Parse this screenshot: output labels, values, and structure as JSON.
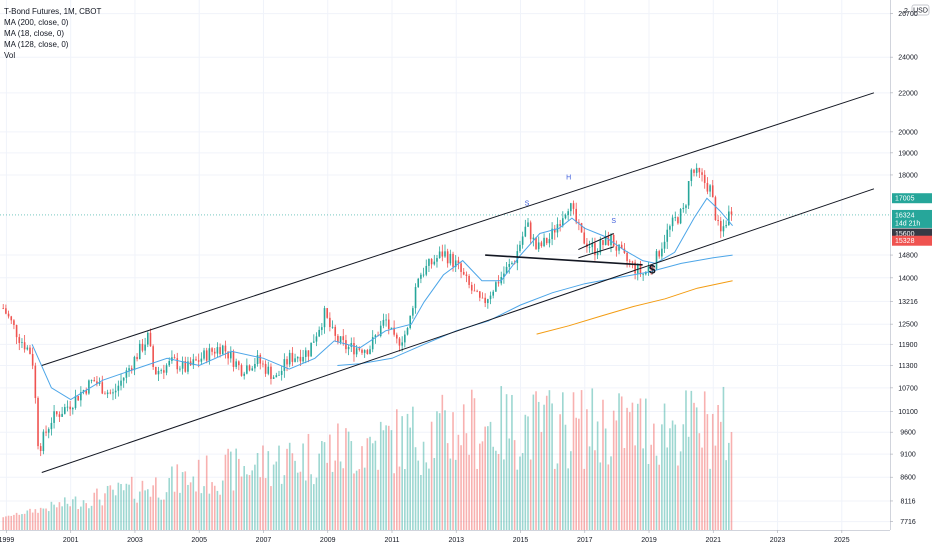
{
  "legend": {
    "title": "T-Bond Futures, 1M, CBOT",
    "studies": [
      "MA (200, close, 0)",
      "MA (18, close, 0)",
      "MA (128, close, 0)",
      "Vol"
    ]
  },
  "chart_data": {
    "type": "candlestick",
    "symbol": "T-Bond Futures",
    "interval": "1M",
    "exchange": "CBOT",
    "currency": "USD",
    "xlim": [
      1998.8,
      2026.5
    ],
    "ylim": [
      7560,
      27600
    ],
    "y_scale": "log",
    "x_ticks": [
      "1999",
      "2001",
      "2003",
      "2005",
      "2007",
      "2009",
      "2011",
      "2013",
      "2015",
      "2017",
      "2019",
      "2021",
      "2023",
      "2025"
    ],
    "y_ticks": [
      "26700",
      "24000",
      "22000",
      "20000",
      "19000",
      "18000",
      "17005",
      "16324",
      "14d 21h",
      "15600",
      "15328",
      "14800",
      "14000",
      "13216",
      "12500",
      "11900",
      "11300",
      "10700",
      "10100",
      "9600",
      "9100",
      "8600",
      "8116",
      "7716"
    ],
    "y_top_label": "2",
    "anchors": [
      [
        1998.9,
        13000
      ],
      [
        1999.4,
        12100
      ],
      [
        1999.8,
        11600
      ],
      [
        2000.0,
        9200
      ],
      [
        2000.4,
        9900
      ],
      [
        2001.0,
        10300
      ],
      [
        2001.7,
        10900
      ],
      [
        2002.3,
        10500
      ],
      [
        2002.8,
        11200
      ],
      [
        2003.4,
        12100
      ],
      [
        2003.6,
        11100
      ],
      [
        2004.2,
        11400
      ],
      [
        2004.6,
        11200
      ],
      [
        2005.2,
        11600
      ],
      [
        2005.7,
        11850
      ],
      [
        2006.3,
        11200
      ],
      [
        2006.8,
        11450
      ],
      [
        2007.4,
        10950
      ],
      [
        2007.8,
        11500
      ],
      [
        2008.4,
        11700
      ],
      [
        2008.9,
        12800
      ],
      [
        2009.2,
        12100
      ],
      [
        2009.6,
        11800
      ],
      [
        2010.3,
        11800
      ],
      [
        2010.8,
        12650
      ],
      [
        2011.1,
        11900
      ],
      [
        2011.5,
        12300
      ],
      [
        2011.8,
        14050
      ],
      [
        2012.6,
        14900
      ],
      [
        2013.0,
        14450
      ],
      [
        2013.4,
        13700
      ],
      [
        2013.8,
        13100
      ],
      [
        2014.3,
        13900
      ],
      [
        2014.8,
        14600
      ],
      [
        2015.2,
        15950
      ],
      [
        2015.5,
        15000
      ],
      [
        2015.9,
        15400
      ],
      [
        2016.5,
        16800
      ],
      [
        2016.9,
        15450
      ],
      [
        2017.3,
        15000
      ],
      [
        2017.8,
        15400
      ],
      [
        2018.2,
        14700
      ],
      [
        2018.8,
        14100
      ],
      [
        2019.2,
        14600
      ],
      [
        2019.5,
        15500
      ],
      [
        2019.8,
        16100
      ],
      [
        2020.1,
        16500
      ],
      [
        2020.3,
        18200
      ],
      [
        2020.6,
        17900
      ],
      [
        2020.9,
        17400
      ],
      [
        2021.2,
        15500
      ],
      [
        2021.6,
        16700
      ]
    ],
    "volume": {
      "first": 7800,
      "growth_until": 2013.5,
      "max": 10500
    },
    "moving_averages": [
      {
        "name": "MA (18, close, 0)",
        "color": "#4da6e8",
        "points": [
          [
            1999.8,
            11900
          ],
          [
            2000.4,
            10700
          ],
          [
            2001.0,
            10400
          ],
          [
            2002.0,
            10900
          ],
          [
            2003.0,
            11200
          ],
          [
            2004.0,
            11500
          ],
          [
            2005.0,
            11300
          ],
          [
            2006.0,
            11700
          ],
          [
            2007.0,
            11500
          ],
          [
            2007.8,
            11200
          ],
          [
            2008.6,
            11500
          ],
          [
            2009.2,
            12000
          ],
          [
            2010.0,
            11800
          ],
          [
            2010.8,
            12300
          ],
          [
            2011.6,
            12500
          ],
          [
            2012.0,
            13200
          ],
          [
            2012.6,
            14100
          ],
          [
            2013.2,
            14600
          ],
          [
            2013.8,
            13900
          ],
          [
            2014.4,
            13900
          ],
          [
            2015.0,
            14800
          ],
          [
            2015.6,
            15600
          ],
          [
            2016.2,
            15800
          ],
          [
            2016.6,
            16200
          ],
          [
            2017.0,
            15800
          ],
          [
            2017.6,
            15500
          ],
          [
            2018.2,
            15000
          ],
          [
            2018.8,
            14600
          ],
          [
            2019.2,
            14500
          ],
          [
            2019.8,
            14900
          ],
          [
            2020.4,
            16200
          ],
          [
            2020.8,
            17000
          ],
          [
            2021.2,
            16500
          ],
          [
            2021.6,
            15900
          ]
        ]
      },
      {
        "name": "MA (128, close, 0)",
        "color": "#4da6e8",
        "points": [
          [
            2009.3,
            11300
          ],
          [
            2010.0,
            11350
          ],
          [
            2011.0,
            11500
          ],
          [
            2012.0,
            11900
          ],
          [
            2013.0,
            12300
          ],
          [
            2014.0,
            12600
          ],
          [
            2015.0,
            13100
          ],
          [
            2016.0,
            13500
          ],
          [
            2017.0,
            13800
          ],
          [
            2018.0,
            14000
          ],
          [
            2019.0,
            14200
          ],
          [
            2020.0,
            14500
          ],
          [
            2021.0,
            14700
          ],
          [
            2021.6,
            14800
          ]
        ]
      },
      {
        "name": "MA (200, close, 0)",
        "color": "#f39c12",
        "points": [
          [
            2015.5,
            12200
          ],
          [
            2016.5,
            12450
          ],
          [
            2017.5,
            12750
          ],
          [
            2018.5,
            13050
          ],
          [
            2019.5,
            13300
          ],
          [
            2020.5,
            13650
          ],
          [
            2021.6,
            13900
          ]
        ]
      }
    ],
    "trendlines": [
      {
        "name": "channel-upper",
        "points": [
          [
            2000.1,
            11300
          ],
          [
            2026.0,
            22000
          ]
        ]
      },
      {
        "name": "channel-lower",
        "points": [
          [
            2000.1,
            8700
          ],
          [
            2026.0,
            17400
          ]
        ]
      },
      {
        "name": "neckline",
        "points": [
          [
            2013.9,
            14800
          ],
          [
            2018.8,
            14450
          ]
        ]
      },
      {
        "name": "flag-upper",
        "points": [
          [
            2016.8,
            15000
          ],
          [
            2017.9,
            15600
          ]
        ]
      },
      {
        "name": "flag-lower",
        "points": [
          [
            2016.8,
            14700
          ],
          [
            2017.9,
            15100
          ]
        ]
      }
    ],
    "annotations": [
      {
        "text": "S",
        "x": 2015.2,
        "y": 16700,
        "color": "#3b5bdb"
      },
      {
        "text": "H",
        "x": 2016.5,
        "y": 17800,
        "color": "#3b5bdb"
      },
      {
        "text": "S",
        "x": 2017.9,
        "y": 16000,
        "color": "#3b5bdb"
      },
      {
        "text": "$",
        "x": 2019.1,
        "y": 14150,
        "color": "#131722"
      }
    ],
    "price_badges": [
      {
        "label": "17005",
        "y": 17005,
        "color": "#26a69a"
      },
      {
        "label": "16324",
        "sub": "14d 21h",
        "y": 16324,
        "color": "#26a69a"
      },
      {
        "label": "15600",
        "y": 15600,
        "color": "#363a45"
      },
      {
        "label": "15328",
        "y": 15328,
        "color": "#ef5350"
      }
    ]
  }
}
